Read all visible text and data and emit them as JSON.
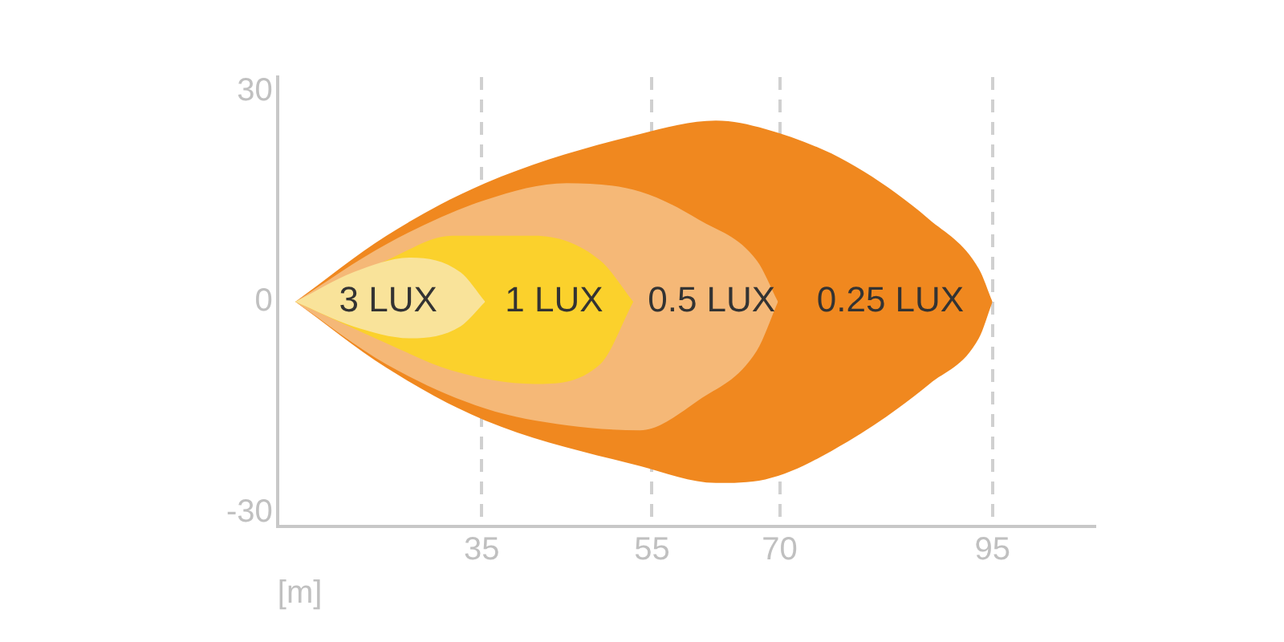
{
  "chart_data": {
    "type": "area",
    "xlabel": "[m]",
    "xlim": [
      11,
      107
    ],
    "xticks": [
      35,
      55,
      70,
      95
    ],
    "ylim": [
      -32,
      32
    ],
    "yticks": [
      -30,
      0,
      30
    ],
    "grid": "x",
    "series": [
      {
        "color": "#f0881f",
        "x": [
          13.1,
          23.8,
          35.4,
          53.6,
          62.5,
          68.3,
          78,
          87.6,
          93.4,
          95
        ],
        "values": [
          0,
          9.4,
          16.9,
          23.9,
          25.8,
          24.6,
          19.9,
          11.7,
          4.7,
          0
        ]
      },
      {
        "color": "#f0881f",
        "x": [
          13.1,
          23.8,
          35.4,
          53.6,
          62.5,
          68.3,
          78,
          87.6,
          93.4,
          95
        ],
        "values": [
          0,
          -9.4,
          -16.9,
          -23.4,
          -25.8,
          -25.3,
          -19.9,
          -11.7,
          -5.2,
          0
        ]
      },
      {
        "color": "#f5b877",
        "x": [
          13.1,
          23.8,
          35.4,
          45,
          53.6,
          60.5,
          67.3,
          69.8
        ],
        "values": [
          0,
          8.2,
          14.5,
          16.9,
          15.7,
          11.7,
          5.9,
          0
        ]
      },
      {
        "color": "#f5b877",
        "x": [
          13.1,
          23.8,
          35.4,
          45,
          53.6,
          60.5,
          67.3,
          69.8
        ],
        "values": [
          0,
          -8.9,
          -15.2,
          -17.6,
          -18.3,
          -14,
          -7,
          0
        ]
      },
      {
        "color": "#fbd12c",
        "x": [
          13.1,
          23.8,
          31.5,
          41.2,
          48.9,
          52.8
        ],
        "values": [
          0,
          5.9,
          9.4,
          9.4,
          5.9,
          0
        ]
      },
      {
        "color": "#fbd12c",
        "x": [
          13.1,
          23.8,
          31.5,
          41.2,
          48.9,
          52.8
        ],
        "values": [
          0,
          -5.9,
          -9.8,
          -11.7,
          -8.9,
          0
        ]
      },
      {
        "color": "#f9e39a",
        "x": [
          13.1,
          19.9,
          26.7,
          32.5,
          35.4
        ],
        "values": [
          0,
          4.2,
          6.3,
          4.2,
          0
        ]
      },
      {
        "color": "#f9e39a",
        "x": [
          13.1,
          19.9,
          26.7,
          32.5,
          35.4
        ],
        "values": [
          0,
          -3.5,
          -5.2,
          -3.5,
          0
        ]
      }
    ],
    "annotations": [
      {
        "text": "3 LUX",
        "x": 24,
        "y": 0
      },
      {
        "text": "1 LUX",
        "x": 43.5,
        "y": 0
      },
      {
        "text": "0.5 LUX",
        "x": 62,
        "y": 0
      },
      {
        "text": "0.25 LUX",
        "x": 83,
        "y": 0
      }
    ]
  }
}
